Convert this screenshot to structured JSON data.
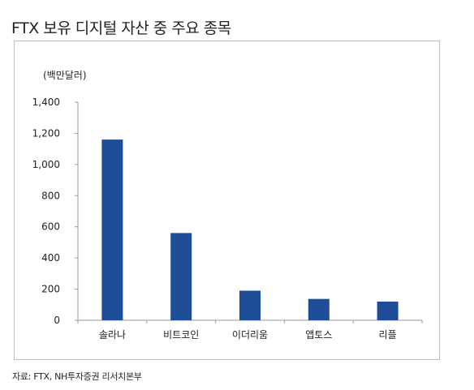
{
  "title": "FTX 보유 디지털 자산 중 주요 종목",
  "source": "자료: FTX, NH투자증권 리서치본부",
  "chart_data": {
    "type": "bar",
    "title": "FTX 보유 디지털 자산 중 주요 종목",
    "unit_label": "(백만달러)",
    "categories": [
      "솔라나",
      "비트코인",
      "이더리움",
      "앱토스",
      "리플"
    ],
    "values": [
      1160,
      560,
      190,
      137,
      120
    ],
    "ylim": [
      0,
      1400
    ],
    "yticks": [
      0,
      200,
      400,
      600,
      800,
      1000,
      1200,
      1400
    ],
    "ytick_labels": [
      "0",
      "200",
      "400",
      "600",
      "800",
      "1,000",
      "1,200",
      "1,400"
    ],
    "grid": false,
    "legend": "none",
    "bar_color": "#1f4e98",
    "axis_color": "#999999"
  }
}
